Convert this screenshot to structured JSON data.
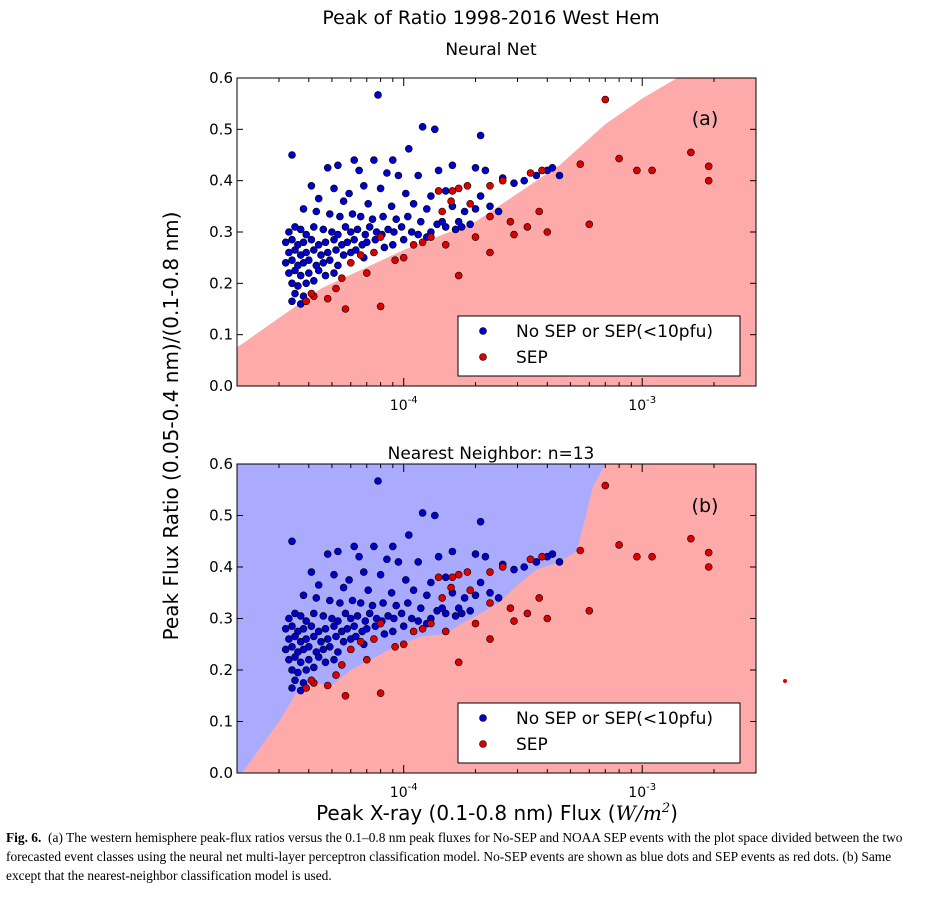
{
  "figure": {
    "suptitle": "Peak of Ratio 1998-2016 West Hem",
    "ylabel": "Peak Flux Ratio (0.05-0.4 nm)/(0.1-0.8 nm)",
    "xlabel_text": "Peak X-ray (0.1-0.8 nm) Flux (",
    "xlabel_unit": "W/m",
    "xlabel_exp": "2",
    "xlabel_close": ")",
    "caption_label": "Fig. 6.",
    "caption_text": "(a) The western hemisphere peak-flux ratios versus the 0.1–0.8 nm peak fluxes for No-SEP and NOAA SEP events with the plot space divided between the two forecasted event classes using the neural net multi-layer perceptron classification model. No-SEP events are shown as blue dots and SEP events as red dots. (b) Same except that the nearest-neighbor classification model is used."
  },
  "colors": {
    "nosep_dot": "#0000cc",
    "sep_dot": "#dd0000",
    "sep_region": "#ffaaaa",
    "nosep_region": "#aaaaff"
  },
  "chart_data": [
    {
      "type": "scatter",
      "title": "Neural Net",
      "panel_label": "(a)",
      "x_scale": "log",
      "xlim": [
        2e-05,
        0.003
      ],
      "ylim": [
        0,
        0.6
      ],
      "yticks": [
        "0.0",
        "0.1",
        "0.2",
        "0.3",
        "0.4",
        "0.5",
        "0.6"
      ],
      "xticks": [
        {
          "base": "10",
          "exp": "-4"
        },
        {
          "base": "10",
          "exp": "-3"
        }
      ],
      "legend_position": "lower-right",
      "background_class": "No SEP or SEP(<10pfu)",
      "sep_region_boundary": [
        [
          2e-05,
          0.075
        ],
        [
          4.5e-05,
          0.19
        ],
        [
          0.0001,
          0.265
        ],
        [
          0.0002,
          0.32
        ],
        [
          0.0003,
          0.375
        ],
        [
          0.00045,
          0.43
        ],
        [
          0.0007,
          0.51
        ],
        [
          0.001,
          0.56
        ],
        [
          0.0014,
          0.6
        ]
      ],
      "series": [
        {
          "name": "No SEP or SEP(<10pfu)",
          "color": "#0000cc",
          "points": [
            [
              7.8e-05,
              0.567
            ],
            [
              0.00012,
              0.505
            ],
            [
              0.000135,
              0.5
            ],
            [
              0.00021,
              0.488
            ],
            [
              0.000105,
              0.462
            ],
            [
              3.4e-05,
              0.45
            ],
            [
              6.2e-05,
              0.44
            ],
            [
              7.5e-05,
              0.44
            ],
            [
              5.3e-05,
              0.43
            ],
            [
              9e-05,
              0.44
            ],
            [
              4.8e-05,
              0.425
            ],
            [
              6.5e-05,
              0.42
            ],
            [
              8.5e-05,
              0.415
            ],
            [
              9.5e-05,
              0.41
            ],
            [
              0.000115,
              0.41
            ],
            [
              0.00014,
              0.42
            ],
            [
              0.00016,
              0.43
            ],
            [
              0.0002,
              0.425
            ],
            [
              0.00022,
              0.42
            ],
            [
              0.00026,
              0.405
            ],
            [
              0.00029,
              0.395
            ],
            [
              0.00032,
              0.4
            ],
            [
              0.00036,
              0.41
            ],
            [
              0.0004,
              0.42
            ],
            [
              0.00042,
              0.425
            ],
            [
              0.00045,
              0.41
            ],
            [
              4.1e-05,
              0.39
            ],
            [
              5.1e-05,
              0.385
            ],
            [
              5.9e-05,
              0.375
            ],
            [
              6.8e-05,
              0.39
            ],
            [
              8e-05,
              0.385
            ],
            [
              0.000102,
              0.375
            ],
            [
              0.00013,
              0.37
            ],
            [
              0.00015,
              0.38
            ],
            [
              0.00021,
              0.37
            ],
            [
              4.4e-05,
              0.365
            ],
            [
              5.6e-05,
              0.36
            ],
            [
              7.1e-05,
              0.355
            ],
            [
              8.9e-05,
              0.35
            ],
            [
              0.00011,
              0.355
            ],
            [
              0.000125,
              0.345
            ],
            [
              0.00016,
              0.35
            ],
            [
              0.00018,
              0.34
            ],
            [
              0.0002,
              0.345
            ],
            [
              0.00023,
              0.35
            ],
            [
              0.00025,
              0.34
            ],
            [
              3.8e-05,
              0.345
            ],
            [
              4.3e-05,
              0.34
            ],
            [
              4.9e-05,
              0.335
            ],
            [
              5.4e-05,
              0.33
            ],
            [
              6.1e-05,
              0.335
            ],
            [
              6.6e-05,
              0.33
            ],
            [
              7.4e-05,
              0.325
            ],
            [
              8.2e-05,
              0.33
            ],
            [
              9.3e-05,
              0.325
            ],
            [
              0.000104,
              0.33
            ],
            [
              0.000118,
              0.32
            ],
            [
              0.000138,
              0.315
            ],
            [
              0.000145,
              0.32
            ],
            [
              0.00017,
              0.32
            ],
            [
              0.00019,
              0.315
            ],
            [
              3.3e-05,
              0.3
            ],
            [
              3.5e-05,
              0.31
            ],
            [
              3.7e-05,
              0.305
            ],
            [
              3.9e-05,
              0.295
            ],
            [
              4.2e-05,
              0.31
            ],
            [
              4.6e-05,
              0.305
            ],
            [
              5e-05,
              0.3
            ],
            [
              5.3e-05,
              0.295
            ],
            [
              5.7e-05,
              0.31
            ],
            [
              6e-05,
              0.3
            ],
            [
              6.4e-05,
              0.305
            ],
            [
              6.9e-05,
              0.295
            ],
            [
              7.2e-05,
              0.31
            ],
            [
              7.7e-05,
              0.3
            ],
            [
              8.1e-05,
              0.295
            ],
            [
              8.6e-05,
              0.305
            ],
            [
              9.1e-05,
              0.3
            ],
            [
              9.8e-05,
              0.31
            ],
            [
              0.000108,
              0.3
            ],
            [
              0.000115,
              0.295
            ],
            [
              0.00013,
              0.3
            ],
            [
              3.2e-05,
              0.28
            ],
            [
              3.4e-05,
              0.285
            ],
            [
              3.6e-05,
              0.275
            ],
            [
              3.8e-05,
              0.28
            ],
            [
              4.1e-05,
              0.285
            ],
            [
              4.4e-05,
              0.275
            ],
            [
              4.7e-05,
              0.28
            ],
            [
              5.1e-05,
              0.285
            ],
            [
              5.5e-05,
              0.275
            ],
            [
              5.8e-05,
              0.28
            ],
            [
              6.2e-05,
              0.285
            ],
            [
              6.7e-05,
              0.275
            ],
            [
              7e-05,
              0.28
            ],
            [
              7.6e-05,
              0.285
            ],
            [
              8.3e-05,
              0.27
            ],
            [
              9e-05,
              0.275
            ],
            [
              3.3e-05,
              0.26
            ],
            [
              3.5e-05,
              0.265
            ],
            [
              3.7e-05,
              0.255
            ],
            [
              3.9e-05,
              0.26
            ],
            [
              4.2e-05,
              0.265
            ],
            [
              4.5e-05,
              0.255
            ],
            [
              4.8e-05,
              0.26
            ],
            [
              5.2e-05,
              0.265
            ],
            [
              5.6e-05,
              0.255
            ],
            [
              6e-05,
              0.26
            ],
            [
              6.3e-05,
              0.265
            ],
            [
              6.8e-05,
              0.25
            ],
            [
              3.2e-05,
              0.24
            ],
            [
              3.4e-05,
              0.245
            ],
            [
              3.6e-05,
              0.235
            ],
            [
              3.8e-05,
              0.24
            ],
            [
              4e-05,
              0.245
            ],
            [
              4.3e-05,
              0.235
            ],
            [
              4.6e-05,
              0.24
            ],
            [
              4.9e-05,
              0.245
            ],
            [
              5.3e-05,
              0.235
            ],
            [
              3.3e-05,
              0.22
            ],
            [
              3.5e-05,
              0.225
            ],
            [
              3.7e-05,
              0.215
            ],
            [
              4e-05,
              0.22
            ],
            [
              4.4e-05,
              0.225
            ],
            [
              4.7e-05,
              0.215
            ],
            [
              5.1e-05,
              0.22
            ],
            [
              3.4e-05,
              0.2
            ],
            [
              3.6e-05,
              0.195
            ],
            [
              3.9e-05,
              0.2
            ],
            [
              4.2e-05,
              0.205
            ],
            [
              3.5e-05,
              0.18
            ],
            [
              3.8e-05,
              0.175
            ],
            [
              3.4e-05,
              0.165
            ],
            [
              3.7e-05,
              0.16
            ],
            [
              0.00015,
              0.31
            ],
            [
              0.000165,
              0.305
            ],
            [
              0.000175,
              0.31
            ],
            [
              0.000125,
              0.29
            ],
            [
              0.0001,
              0.285
            ]
          ]
        },
        {
          "name": "SEP",
          "color": "#dd0000",
          "points": [
            [
              0.0007,
              0.558
            ],
            [
              0.0008,
              0.443
            ],
            [
              0.00095,
              0.42
            ],
            [
              0.0011,
              0.42
            ],
            [
              0.0016,
              0.455
            ],
            [
              0.0019,
              0.428
            ],
            [
              0.0019,
              0.4
            ],
            [
              0.00055,
              0.432
            ],
            [
              0.00038,
              0.42
            ],
            [
              0.00034,
              0.415
            ],
            [
              0.00026,
              0.4
            ],
            [
              0.00023,
              0.39
            ],
            [
              0.000185,
              0.39
            ],
            [
              0.00017,
              0.385
            ],
            [
              0.00014,
              0.38
            ],
            [
              0.00016,
              0.38
            ],
            [
              0.000158,
              0.36
            ],
            [
              0.00019,
              0.355
            ],
            [
              0.000145,
              0.34
            ],
            [
              0.00023,
              0.33
            ],
            [
              0.00028,
              0.32
            ],
            [
              0.00033,
              0.31
            ],
            [
              0.00037,
              0.34
            ],
            [
              0.0004,
              0.3
            ],
            [
              0.0006,
              0.315
            ],
            [
              0.00029,
              0.295
            ],
            [
              0.0002,
              0.29
            ],
            [
              0.00015,
              0.275
            ],
            [
              0.00013,
              0.29
            ],
            [
              0.00012,
              0.28
            ],
            [
              0.00011,
              0.275
            ],
            [
              0.0001,
              0.25
            ],
            [
              9.2e-05,
              0.245
            ],
            [
              0.00023,
              0.26
            ],
            [
              0.00017,
              0.215
            ],
            [
              8e-05,
              0.29
            ],
            [
              7.5e-05,
              0.26
            ],
            [
              6.6e-05,
              0.255
            ],
            [
              6e-05,
              0.24
            ],
            [
              7e-05,
              0.22
            ],
            [
              5.5e-05,
              0.21
            ],
            [
              5.2e-05,
              0.19
            ],
            [
              4.8e-05,
              0.17
            ],
            [
              5.7e-05,
              0.15
            ],
            [
              8e-05,
              0.155
            ],
            [
              4.2e-05,
              0.175
            ],
            [
              4.1e-05,
              0.18
            ],
            [
              3.9e-05,
              0.165
            ]
          ]
        }
      ],
      "legend": [
        "No SEP or SEP(<10pfu)",
        "SEP"
      ]
    },
    {
      "type": "scatter",
      "title": "Nearest Neighbor: n=13",
      "panel_label": "(b)",
      "x_scale": "log",
      "xlim": [
        2e-05,
        0.003
      ],
      "ylim": [
        0,
        0.6
      ],
      "yticks": [
        "0.0",
        "0.1",
        "0.2",
        "0.3",
        "0.4",
        "0.5",
        "0.6"
      ],
      "xticks": [
        {
          "base": "10",
          "exp": "-4"
        },
        {
          "base": "10",
          "exp": "-3"
        }
      ],
      "legend_position": "lower-right",
      "sep_region_boundary": [
        [
          2.1e-05,
          0.0
        ],
        [
          3e-05,
          0.1
        ],
        [
          3.6e-05,
          0.16
        ],
        [
          4.2e-05,
          0.175
        ],
        [
          5e-05,
          0.17
        ],
        [
          6e-05,
          0.2
        ],
        [
          7.3e-05,
          0.22
        ],
        [
          9.5e-05,
          0.25
        ],
        [
          0.00012,
          0.265
        ],
        [
          0.00015,
          0.27
        ],
        [
          0.000175,
          0.29
        ],
        [
          0.00021,
          0.31
        ],
        [
          0.00025,
          0.33
        ],
        [
          0.0003,
          0.365
        ],
        [
          0.00036,
          0.395
        ],
        [
          0.00045,
          0.41
        ],
        [
          0.00053,
          0.43
        ],
        [
          0.00057,
          0.485
        ],
        [
          0.00062,
          0.555
        ],
        [
          0.0007,
          0.6
        ]
      ],
      "series": [
        {
          "name": "No SEP or SEP(<10pfu)",
          "color": "#0000cc",
          "same_points_as_panel": 0
        },
        {
          "name": "SEP",
          "color": "#dd0000",
          "same_points_as_panel": 0
        }
      ],
      "legend": [
        "No SEP or SEP(<10pfu)",
        "SEP"
      ]
    }
  ]
}
